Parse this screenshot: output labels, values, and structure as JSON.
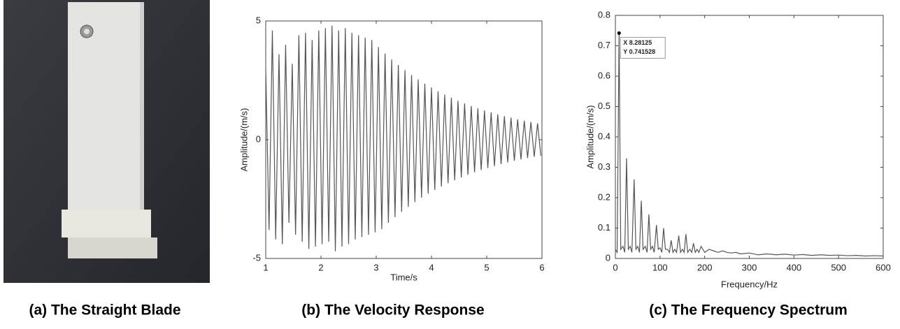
{
  "photo": {
    "caption": "(a) The Straight Blade"
  },
  "chart_data": [
    {
      "type": "line",
      "caption": "(b) The Velocity Response",
      "xlabel": "Time/s",
      "ylabel": "Amplitude/(m/s)",
      "x": [
        1.0,
        1.06,
        1.12,
        1.18,
        1.24,
        1.3,
        1.36,
        1.42,
        1.48,
        1.54,
        1.6,
        1.66,
        1.72,
        1.78,
        1.84,
        1.9,
        1.96,
        2.02,
        2.08,
        2.14,
        2.2,
        2.26,
        2.32,
        2.38,
        2.44,
        2.5,
        2.56,
        2.62,
        2.68,
        2.74,
        2.8,
        2.86,
        2.92,
        2.98,
        3.04,
        3.1,
        3.16,
        3.22,
        3.28,
        3.34,
        3.4,
        3.46,
        3.52,
        3.58,
        3.64,
        3.7,
        3.76,
        3.82,
        3.88,
        3.94,
        4.0,
        4.06,
        4.12,
        4.18,
        4.24,
        4.3,
        4.36,
        4.42,
        4.48,
        4.54,
        4.6,
        4.66,
        4.72,
        4.78,
        4.84,
        4.9,
        4.96,
        5.02,
        5.08,
        5.14,
        5.2,
        5.26,
        5.32,
        5.38,
        5.44,
        5.5,
        5.56,
        5.62,
        5.68,
        5.74,
        5.8,
        5.86,
        5.92,
        5.98
      ],
      "series": [
        {
          "color": "#555555",
          "values": [
            3.0,
            -3.8,
            4.6,
            -4.2,
            3.6,
            -4.4,
            4.0,
            -3.5,
            3.2,
            -4.0,
            4.4,
            -4.3,
            4.5,
            -4.6,
            4.2,
            -4.5,
            4.6,
            -4.4,
            4.7,
            -4.3,
            4.8,
            -4.7,
            4.6,
            -4.5,
            4.7,
            -4.4,
            4.5,
            -4.2,
            4.4,
            -4.1,
            4.3,
            -4.0,
            4.2,
            -3.9,
            3.9,
            -3.77,
            3.63,
            -3.5,
            3.38,
            -3.26,
            3.15,
            -3.04,
            2.93,
            -2.83,
            2.72,
            -2.63,
            2.54,
            -2.44,
            2.36,
            -2.27,
            2.2,
            -2.12,
            2.04,
            -1.97,
            1.9,
            -1.83,
            1.77,
            -1.71,
            1.64,
            -1.59,
            1.53,
            -1.48,
            1.42,
            -1.37,
            1.32,
            -1.28,
            1.23,
            -1.19,
            1.15,
            -1.11,
            1.07,
            -1.03,
            0.99,
            -0.96,
            0.93,
            -0.89,
            0.86,
            -0.83,
            0.8,
            -0.77,
            0.75,
            -0.72,
            0.69,
            -0.67
          ]
        }
      ],
      "xlim": [
        1,
        6
      ],
      "xticks": [
        1,
        2,
        3,
        4,
        5,
        6
      ],
      "ylim": [
        -5,
        5
      ],
      "yticks": [
        -5,
        0,
        5
      ]
    },
    {
      "type": "line",
      "caption": "(c) The Frequency Spectrum",
      "xlabel": "Frequency/Hz",
      "ylabel": "Amplitude/(m/s)",
      "x": [
        0,
        4,
        8.28125,
        12,
        17,
        21,
        25,
        29,
        33,
        37,
        42,
        46,
        50,
        54,
        58,
        62,
        67,
        71,
        75,
        79,
        83,
        87,
        92,
        96,
        100,
        104,
        108,
        112,
        117,
        121,
        125,
        129,
        133,
        137,
        142,
        146,
        150,
        154,
        158,
        162,
        167,
        171,
        175,
        179,
        183,
        187,
        192,
        200,
        210,
        220,
        230,
        240,
        250,
        260,
        270,
        280,
        300,
        320,
        340,
        360,
        380,
        400,
        420,
        440,
        460,
        480,
        500,
        520,
        540,
        560,
        580,
        600
      ],
      "series": [
        {
          "color": "#555555",
          "values": [
            0.03,
            0.02,
            0.741528,
            0.03,
            0.04,
            0.02,
            0.33,
            0.03,
            0.04,
            0.02,
            0.26,
            0.03,
            0.04,
            0.02,
            0.19,
            0.03,
            0.04,
            0.02,
            0.145,
            0.03,
            0.04,
            0.02,
            0.11,
            0.03,
            0.035,
            0.02,
            0.1,
            0.03,
            0.03,
            0.02,
            0.06,
            0.02,
            0.03,
            0.02,
            0.075,
            0.02,
            0.03,
            0.02,
            0.08,
            0.02,
            0.03,
            0.02,
            0.05,
            0.02,
            0.03,
            0.02,
            0.04,
            0.02,
            0.03,
            0.025,
            0.02,
            0.025,
            0.02,
            0.018,
            0.02,
            0.015,
            0.018,
            0.012,
            0.015,
            0.012,
            0.014,
            0.011,
            0.013,
            0.01,
            0.012,
            0.01,
            0.011,
            0.009,
            0.01,
            0.008,
            0.009,
            0.008
          ]
        }
      ],
      "annotation": {
        "x_text": "X 8.28125",
        "y_text": "Y 0.741528"
      },
      "xlim": [
        0,
        600
      ],
      "xticks": [
        0,
        100,
        200,
        300,
        400,
        500,
        600
      ],
      "ylim": [
        0,
        0.8
      ],
      "yticks": [
        0,
        0.1,
        0.2,
        0.3,
        0.4,
        0.5,
        0.6,
        0.7,
        0.8
      ]
    }
  ]
}
